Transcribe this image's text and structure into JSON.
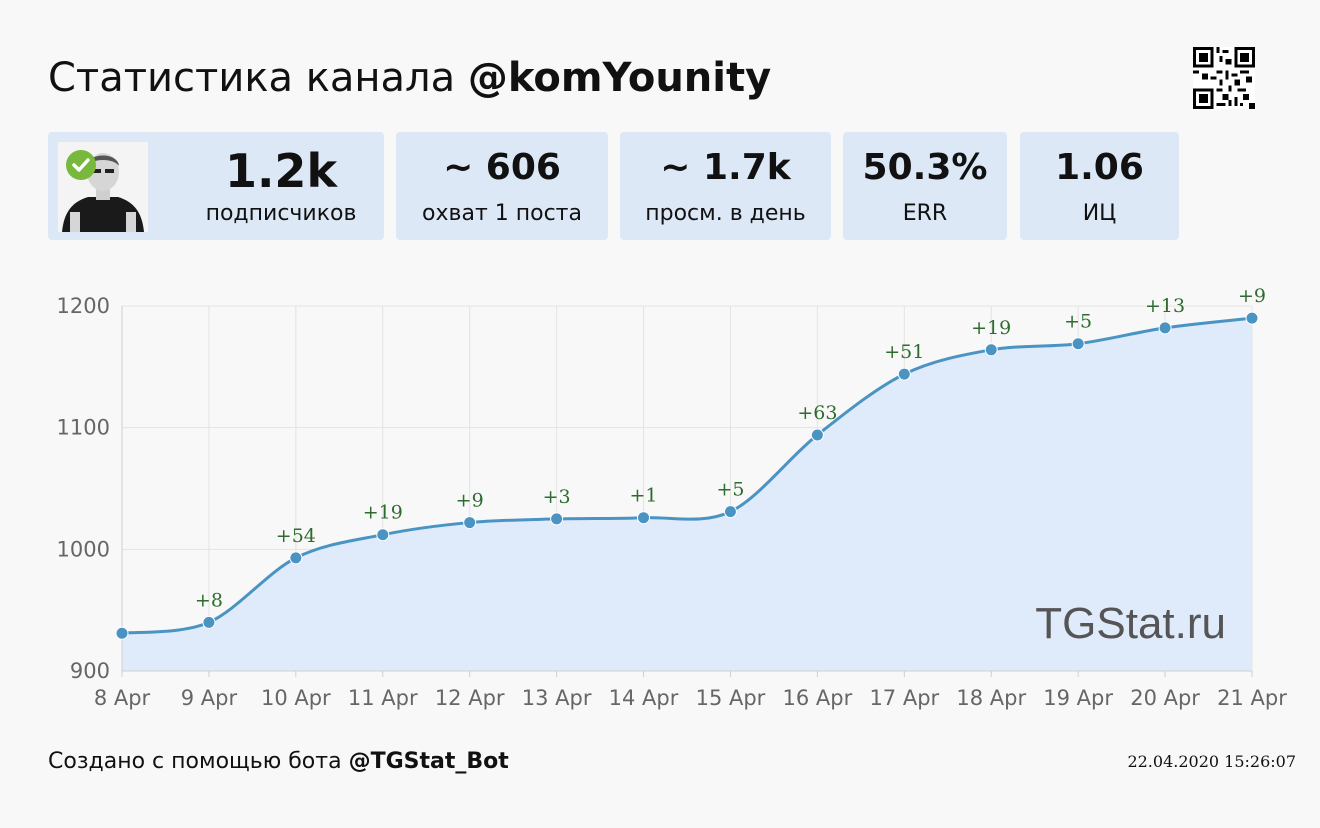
{
  "header": {
    "title_prefix": "Статистика канала",
    "channel": "@komYounity"
  },
  "stats": [
    {
      "value": "1.2k",
      "label": "подписчиков"
    },
    {
      "value": "~ 606",
      "label": "охват 1 поста"
    },
    {
      "value": "~ 1.7k",
      "label": "просм. в день"
    },
    {
      "value": "50.3%",
      "label": "ERR"
    },
    {
      "value": "1.06",
      "label": "ИЦ"
    }
  ],
  "chart_data": {
    "type": "area",
    "categories": [
      "8 Apr",
      "9 Apr",
      "10 Apr",
      "11 Apr",
      "12 Apr",
      "13 Apr",
      "14 Apr",
      "15 Apr",
      "16 Apr",
      "17 Apr",
      "18 Apr",
      "19 Apr",
      "20 Apr",
      "21 Apr"
    ],
    "values": [
      931,
      940,
      993,
      1012,
      1022,
      1025,
      1026,
      1031,
      1094,
      1144,
      1164,
      1169,
      1182,
      1190
    ],
    "data_labels": [
      "",
      "+8",
      "+54",
      "+19",
      "+9",
      "+3",
      "+1",
      "+5",
      "+63",
      "+51",
      "+19",
      "+5",
      "+13",
      "+9"
    ],
    "y_ticks": [
      900,
      1000,
      1100,
      1200
    ],
    "ylim": [
      900,
      1200
    ],
    "grid": true,
    "watermark": "TGStat.ru",
    "colors": {
      "line": "#4a94c4",
      "fill": "#dfeafb",
      "label": "#2e6b2e",
      "grid": "#e3e3e3"
    }
  },
  "footer": {
    "prefix": "Создано с помощью бота",
    "bot": "@TGStat_Bot",
    "timestamp": "22.04.2020 15:26:07"
  },
  "icons": {
    "qr": "qr-code-icon",
    "avatar": "channel-avatar",
    "badge": "verified-check-icon"
  }
}
